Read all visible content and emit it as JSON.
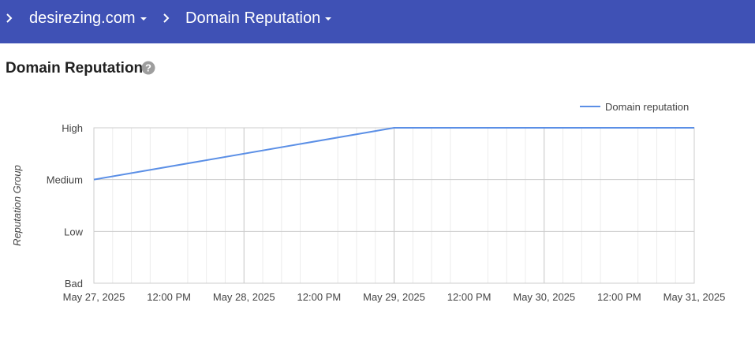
{
  "header": {
    "site_label": "desirezing.com",
    "page_label": "Domain Reputation"
  },
  "main": {
    "title": "Domain Reputation"
  },
  "colors": {
    "header_bg": "#3f51b5",
    "series_line": "#5b8fe6",
    "help_icon": "#9e9e9e"
  },
  "icons": {
    "breadcrumb_separator": "chevron-right-icon",
    "dropdown": "caret-down-icon",
    "help": "help-circle-icon"
  },
  "chart_data": {
    "type": "line",
    "title": "",
    "xlabel": "",
    "ylabel": "Reputation Group",
    "y_categories": [
      "Bad",
      "Low",
      "Medium",
      "High"
    ],
    "x_ticks": [
      "May 27, 2025",
      "12:00 PM",
      "May 28, 2025",
      "12:00 PM",
      "May 29, 2025",
      "12:00 PM",
      "May 30, 2025",
      "12:00 PM",
      "May 31, 2025"
    ],
    "xlim": [
      "May 27, 2025",
      "May 31, 2025"
    ],
    "legend_position": "top-right",
    "grid": true,
    "series": [
      {
        "name": "Domain reputation",
        "points": [
          {
            "x": "May 27, 2025",
            "y": "Medium"
          },
          {
            "x": "May 29, 2025",
            "y": "High"
          },
          {
            "x": "May 30, 2025",
            "y": "High"
          },
          {
            "x": "May 31, 2025",
            "y": "High"
          }
        ]
      }
    ]
  }
}
